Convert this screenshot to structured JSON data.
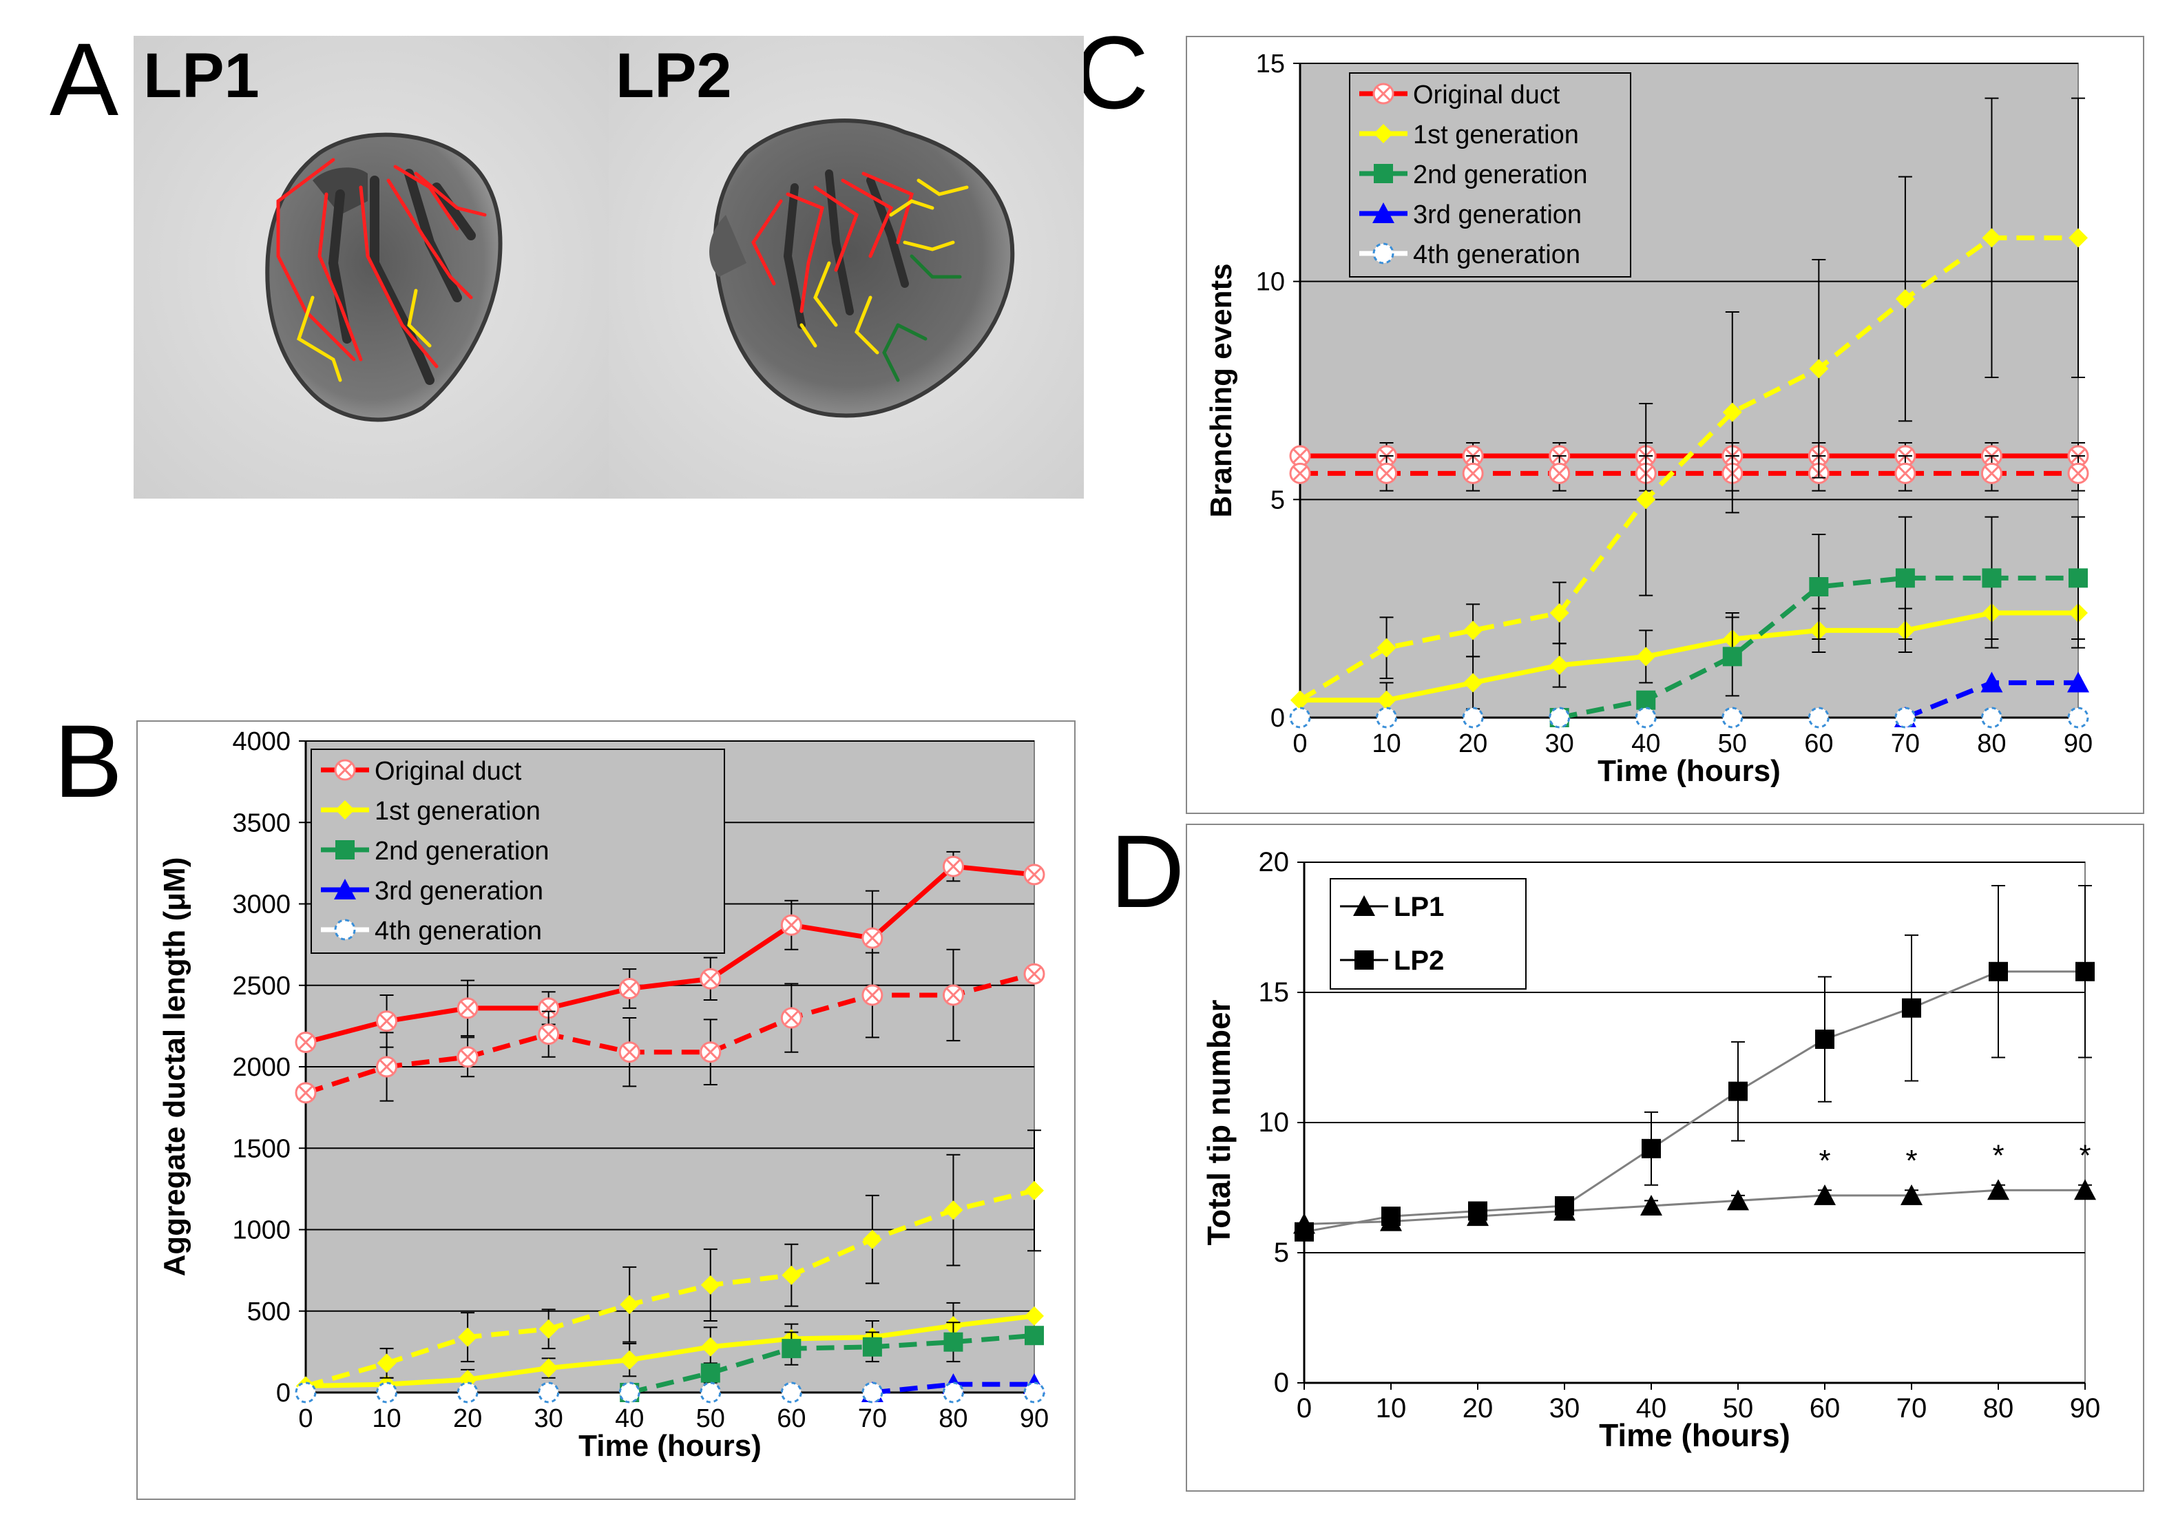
{
  "panel_letters": [
    "A",
    "B",
    "C",
    "D"
  ],
  "photo_labels": [
    "LP1",
    "LP2"
  ],
  "colors": {
    "original": "#ff0000",
    "first": "#ffff00",
    "second": "#1a9850",
    "third": "#0000ff",
    "fourth": "#ffffff",
    "plot_bg": "#c0c0c0",
    "lp_line": "#808080"
  },
  "chart_data": [
    {
      "id": "B",
      "type": "line",
      "title": "",
      "xlabel": "Time (hours)",
      "ylabel": "Aggregate ductal length (μM)",
      "x": [
        0,
        10,
        20,
        30,
        40,
        50,
        60,
        70,
        80,
        90
      ],
      "xlim": [
        0,
        90
      ],
      "ylim": [
        0,
        4000
      ],
      "yticks": [
        0,
        500,
        1000,
        1500,
        2000,
        2500,
        3000,
        3500,
        4000
      ],
      "grid": true,
      "legend_position": "top-left",
      "legend": [
        "Original duct",
        "1st generation",
        "2nd generation",
        "3rd generation",
        "4th generation"
      ],
      "series": [
        {
          "name": "Original duct (LP1)",
          "style": "solid",
          "color_key": "original",
          "marker": "xcircle",
          "values": [
            2150,
            2280,
            2360,
            2360,
            2480,
            2540,
            2870,
            2790,
            3230,
            3180
          ],
          "errors": [
            0,
            160,
            170,
            100,
            120,
            130,
            150,
            290,
            90,
            0
          ]
        },
        {
          "name": "Original duct (LP2)",
          "style": "dashed",
          "color_key": "original",
          "marker": "xcircle",
          "values": [
            1840,
            2000,
            2060,
            2200,
            2090,
            2090,
            2300,
            2440,
            2440,
            2570
          ],
          "errors": [
            0,
            210,
            120,
            140,
            210,
            200,
            210,
            260,
            280,
            0
          ]
        },
        {
          "name": "1st generation (LP1)",
          "style": "solid",
          "color_key": "first",
          "marker": "diamond",
          "values": [
            40,
            50,
            80,
            150,
            200,
            280,
            330,
            340,
            410,
            470
          ],
          "errors": [
            0,
            40,
            60,
            60,
            100,
            120,
            90,
            100,
            140,
            0
          ]
        },
        {
          "name": "1st generation (LP2)",
          "style": "dashed",
          "color_key": "first",
          "marker": "diamond",
          "values": [
            40,
            180,
            340,
            390,
            540,
            660,
            720,
            940,
            1120,
            1240
          ],
          "errors": [
            0,
            90,
            150,
            120,
            230,
            220,
            190,
            270,
            340,
            370
          ]
        },
        {
          "name": "2nd generation (LP2)",
          "style": "dashed",
          "color_key": "second",
          "marker": "square",
          "values": [
            null,
            null,
            null,
            null,
            0,
            120,
            270,
            280,
            310,
            350
          ],
          "errors": [
            0,
            0,
            0,
            0,
            0,
            60,
            100,
            90,
            120,
            0
          ]
        },
        {
          "name": "3rd generation (LP2)",
          "style": "dashed",
          "color_key": "third",
          "marker": "triangle",
          "values": [
            null,
            null,
            null,
            null,
            null,
            null,
            null,
            0,
            50,
            50
          ],
          "errors": [
            0,
            0,
            0,
            0,
            0,
            0,
            0,
            0,
            0,
            0
          ]
        },
        {
          "name": "4th generation",
          "style": "none",
          "color_key": "fourth",
          "marker": "circle",
          "values": [
            0,
            0,
            0,
            0,
            0,
            0,
            0,
            0,
            0,
            0
          ],
          "errors": [
            0,
            0,
            0,
            0,
            0,
            0,
            0,
            0,
            0,
            0
          ]
        }
      ]
    },
    {
      "id": "C",
      "type": "line",
      "title": "",
      "xlabel": "Time (hours)",
      "ylabel": "Branching events",
      "x": [
        0,
        10,
        20,
        30,
        40,
        50,
        60,
        70,
        80,
        90
      ],
      "xlim": [
        0,
        90
      ],
      "ylim": [
        0,
        15
      ],
      "yticks": [
        0,
        5,
        10,
        15
      ],
      "grid": true,
      "legend_position": "top-left",
      "legend": [
        "Original duct",
        "1st generation",
        "2nd generation",
        "3rd generation",
        "4th generation"
      ],
      "series": [
        {
          "name": "Original duct (LP1)",
          "style": "solid",
          "color_key": "original",
          "marker": "xcircle",
          "values": [
            6,
            6,
            6,
            6,
            6,
            6,
            6,
            6,
            6,
            6
          ],
          "errors": [
            0,
            0.3,
            0.3,
            0.3,
            0.3,
            0.3,
            0.3,
            0.3,
            0.3,
            0.3
          ]
        },
        {
          "name": "Original duct (LP2)",
          "style": "dashed",
          "color_key": "original",
          "marker": "xcircle",
          "values": [
            5.6,
            5.6,
            5.6,
            5.6,
            5.6,
            5.6,
            5.6,
            5.6,
            5.6,
            5.6
          ],
          "errors": [
            0,
            0.4,
            0.4,
            0.4,
            0.4,
            0.4,
            0.4,
            0.4,
            0.4,
            0.4
          ]
        },
        {
          "name": "1st generation (LP1)",
          "style": "solid",
          "color_key": "first",
          "marker": "diamond",
          "values": [
            0.4,
            0.4,
            0.8,
            1.2,
            1.4,
            1.8,
            2.0,
            2.0,
            2.4,
            2.4
          ],
          "errors": [
            0,
            0.4,
            0.6,
            0.5,
            0.6,
            0.6,
            0.5,
            0.5,
            0.8,
            0.8
          ]
        },
        {
          "name": "1st generation (LP2)",
          "style": "dashed",
          "color_key": "first",
          "marker": "diamond",
          "values": [
            0.4,
            1.6,
            2.0,
            2.4,
            5.0,
            7.0,
            8.0,
            9.6,
            11.0,
            11.0
          ],
          "errors": [
            0,
            0.7,
            0.6,
            0.7,
            2.2,
            2.3,
            2.5,
            2.8,
            3.2,
            3.2
          ]
        },
        {
          "name": "2nd generation (LP2)",
          "style": "dashed",
          "color_key": "second",
          "marker": "square",
          "values": [
            null,
            null,
            null,
            0,
            0.4,
            1.4,
            3.0,
            3.2,
            3.2,
            3.2
          ],
          "errors": [
            0,
            0,
            0,
            0,
            0,
            0.9,
            1.2,
            1.4,
            1.4,
            1.4
          ]
        },
        {
          "name": "3rd generation (LP2)",
          "style": "dashed",
          "color_key": "third",
          "marker": "triangle",
          "values": [
            null,
            null,
            null,
            null,
            null,
            null,
            null,
            0,
            0.8,
            0.8
          ],
          "errors": [
            0,
            0,
            0,
            0,
            0,
            0,
            0,
            0,
            0,
            0
          ]
        },
        {
          "name": "4th generation",
          "style": "none",
          "color_key": "fourth",
          "marker": "circle",
          "values": [
            0,
            0,
            0,
            0,
            0,
            0,
            0,
            0,
            0,
            0
          ],
          "errors": [
            0,
            0,
            0,
            0,
            0,
            0,
            0,
            0,
            0,
            0
          ]
        }
      ]
    },
    {
      "id": "D",
      "type": "line",
      "title": "",
      "xlabel": "Time (hours)",
      "ylabel": "Total tip number",
      "x": [
        0,
        10,
        20,
        30,
        40,
        50,
        60,
        70,
        80,
        90
      ],
      "xlim": [
        0,
        90
      ],
      "ylim": [
        0,
        20
      ],
      "yticks": [
        0,
        5,
        10,
        15,
        20
      ],
      "grid": true,
      "legend_position": "top-left",
      "legend": [
        "LP1",
        "LP2"
      ],
      "annotation": "*",
      "annotation_x": [
        60,
        70,
        80,
        90
      ],
      "series": [
        {
          "name": "LP1",
          "marker": "triangle",
          "values": [
            6.1,
            6.2,
            6.4,
            6.6,
            6.8,
            7.0,
            7.2,
            7.2,
            7.4,
            7.4
          ],
          "errors": [
            0,
            0.2,
            0.2,
            0.2,
            0.2,
            0.2,
            0.2,
            0.2,
            0.2,
            0.2
          ]
        },
        {
          "name": "LP2",
          "marker": "square",
          "values": [
            5.8,
            6.4,
            6.6,
            6.8,
            9.0,
            11.2,
            13.2,
            14.4,
            15.8,
            15.8
          ],
          "errors": [
            0,
            0.3,
            0.3,
            0.3,
            1.4,
            1.9,
            2.4,
            2.8,
            3.3,
            3.3
          ]
        }
      ]
    }
  ]
}
